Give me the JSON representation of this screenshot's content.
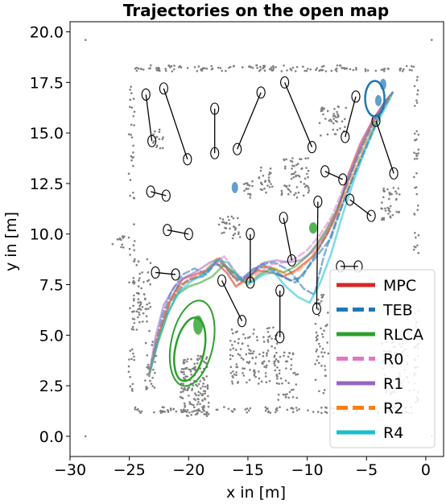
{
  "chart_data": {
    "type": "line",
    "title": "Trajectories on the open map",
    "xlabel": "x in [m]",
    "ylabel": "y in [m]",
    "xlim": [
      -30,
      1.5
    ],
    "ylim": [
      -1,
      20.5
    ],
    "xticks": [
      -30,
      -25,
      -20,
      -15,
      -10,
      -5,
      0
    ],
    "yticks": [
      0.0,
      2.5,
      5.0,
      7.5,
      10.0,
      12.5,
      15.0,
      17.5,
      20.0
    ],
    "xtick_labels": [
      "−30",
      "−25",
      "−20",
      "−15",
      "−10",
      "−5",
      "0"
    ],
    "ytick_labels": [
      "0.0",
      "2.5",
      "5.0",
      "7.5",
      "10.0",
      "12.5",
      "15.0",
      "17.5",
      "20.0"
    ],
    "grid": false,
    "legend_position": "bottom-right",
    "legend": [
      {
        "name": "MPC",
        "color": "#d62728",
        "style": "solid"
      },
      {
        "name": "TEB",
        "color": "#1f77b4",
        "style": "dashed"
      },
      {
        "name": "RLCA",
        "color": "#2ca02c",
        "style": "solid"
      },
      {
        "name": "R0",
        "color": "#e377c2",
        "style": "dashed"
      },
      {
        "name": "R1",
        "color": "#9467bd",
        "style": "solid"
      },
      {
        "name": "R2",
        "color": "#ff7f0e",
        "style": "dashed"
      },
      {
        "name": "R4",
        "color": "#17becf",
        "style": "solid"
      }
    ],
    "start": [
      -23.3,
      3.1
    ],
    "goal": [
      -2.8,
      17.0
    ],
    "series": [
      {
        "name": "MPC",
        "color": "#d62728",
        "x": [
          -23.3,
          -22.5,
          -21.5,
          -20.5,
          -19.5,
          -18.5,
          -17.7,
          -16.8,
          -16.0,
          -15.2,
          -14.2,
          -13.0,
          -12.0,
          -11.0,
          -9.5,
          -8.3,
          -7.5,
          -6.5,
          -5.5,
          -4.5,
          -3.5,
          -2.8
        ],
        "y": [
          3.1,
          5.0,
          6.8,
          7.8,
          8.0,
          8.2,
          8.6,
          8.1,
          7.4,
          7.8,
          8.2,
          8.1,
          7.9,
          8.2,
          8.9,
          10.0,
          11.0,
          13.0,
          14.5,
          15.6,
          16.5,
          17.0
        ]
      },
      {
        "name": "TEB",
        "color": "#1f77b4",
        "x": [
          -23.3,
          -22.8,
          -22.2,
          -21.5,
          -20.5,
          -19.5,
          -18.5,
          -17.6,
          -16.5,
          -15.5,
          -14.5,
          -13.2,
          -12.0,
          -11.0,
          -10.0,
          -9.2,
          -8.0,
          -7.0,
          -6.0,
          -5.0,
          -4.0,
          -2.8
        ],
        "y": [
          3.1,
          4.5,
          6.0,
          7.1,
          8.0,
          8.3,
          8.0,
          8.7,
          8.2,
          7.8,
          8.3,
          8.4,
          7.9,
          7.6,
          8.3,
          8.9,
          9.8,
          11.5,
          13.0,
          14.3,
          15.8,
          17.0
        ]
      },
      {
        "name": "TEB",
        "color": "#1f77b4",
        "x": [
          -23.3,
          -22.6,
          -21.6,
          -20.3,
          -19.2,
          -18.2,
          -17.4,
          -16.3,
          -15.2,
          -14.0,
          -12.8,
          -11.5,
          -10.3,
          -9.4,
          -8.6,
          -7.6,
          -6.4,
          -5.3,
          -4.4,
          -3.5,
          -2.8
        ],
        "y": [
          3.1,
          4.9,
          6.6,
          7.6,
          7.9,
          8.3,
          8.8,
          7.9,
          7.6,
          8.5,
          8.6,
          8.2,
          7.3,
          7.0,
          8.9,
          10.6,
          12.4,
          14.0,
          15.2,
          16.3,
          17.0
        ]
      },
      {
        "name": "TEB",
        "color": "#1f77b4",
        "x": [
          -23.3,
          -22.7,
          -21.9,
          -20.9,
          -19.8,
          -18.8,
          -17.8,
          -16.9,
          -15.9,
          -14.8,
          -13.7,
          -12.5,
          -11.4,
          -10.4,
          -9.6,
          -8.8,
          -7.9,
          -6.9,
          -5.9,
          -4.8,
          -3.8,
          -2.8
        ],
        "y": [
          3.1,
          4.7,
          6.3,
          7.4,
          7.8,
          7.9,
          8.5,
          8.4,
          7.7,
          8.0,
          8.5,
          8.0,
          7.7,
          7.9,
          8.7,
          9.5,
          10.5,
          12.1,
          13.6,
          15.0,
          16.2,
          17.0
        ]
      },
      {
        "name": "RLCA",
        "color": "#2ca02c",
        "x": [
          -23.3,
          -22.6,
          -21.8,
          -21.0,
          -20.0,
          -19.0,
          -18.0,
          -17.0,
          -16.0,
          -15.0,
          -14.0,
          -13.0,
          -12.0,
          -11.0,
          -10.0,
          -9.2,
          -8.4,
          -7.5,
          -6.5,
          -5.5,
          -4.5,
          -3.5,
          -2.8
        ],
        "y": [
          3.1,
          4.6,
          6.0,
          7.0,
          7.4,
          7.6,
          7.9,
          8.5,
          8.0,
          7.5,
          8.0,
          8.3,
          8.1,
          8.4,
          8.9,
          9.5,
          10.2,
          11.2,
          12.8,
          14.3,
          15.5,
          16.5,
          17.0
        ]
      },
      {
        "name": "R0",
        "color": "#e377c2",
        "x": [
          -23.3,
          -22.7,
          -21.9,
          -21.0,
          -20.0,
          -19.0,
          -18.0,
          -17.0,
          -16.0,
          -15.0,
          -14.0,
          -13.0,
          -12.0,
          -11.0,
          -10.0,
          -9.0,
          -8.0,
          -7.2,
          -6.2,
          -5.2,
          -4.2,
          -3.3,
          -2.8
        ],
        "y": [
          3.1,
          4.8,
          6.3,
          7.2,
          7.8,
          8.1,
          8.4,
          8.9,
          8.1,
          7.6,
          8.1,
          8.5,
          8.6,
          8.8,
          9.2,
          9.9,
          10.8,
          11.9,
          13.4,
          14.8,
          15.9,
          16.6,
          17.0
        ]
      },
      {
        "name": "R1",
        "color": "#9467bd",
        "x": [
          -23.3,
          -22.8,
          -22.1,
          -21.2,
          -20.2,
          -19.2,
          -18.2,
          -17.3,
          -16.4,
          -15.5,
          -14.6,
          -13.6,
          -12.6,
          -11.6,
          -10.6,
          -9.6,
          -8.6,
          -7.6,
          -6.6,
          -5.6,
          -4.6,
          -3.6,
          -2.8
        ],
        "y": [
          3.1,
          4.9,
          6.5,
          7.4,
          7.9,
          8.2,
          8.6,
          8.8,
          8.0,
          7.7,
          8.2,
          8.6,
          8.7,
          8.6,
          8.7,
          9.1,
          9.9,
          11.0,
          12.6,
          14.1,
          15.4,
          16.4,
          17.0
        ]
      },
      {
        "name": "R2",
        "color": "#ff7f0e",
        "x": [
          -23.3,
          -22.5,
          -21.6,
          -20.6,
          -19.6,
          -18.6,
          -17.6,
          -16.7,
          -15.7,
          -14.7,
          -13.7,
          -12.7,
          -11.7,
          -10.7,
          -9.7,
          -8.8,
          -7.9,
          -7.0,
          -6.0,
          -5.0,
          -4.0,
          -3.2,
          -2.8
        ],
        "y": [
          3.1,
          5.0,
          6.7,
          7.5,
          7.8,
          8.2,
          8.8,
          8.3,
          7.5,
          7.9,
          8.4,
          8.3,
          8.0,
          8.2,
          8.8,
          9.6,
          10.5,
          11.7,
          13.2,
          14.6,
          15.8,
          16.6,
          17.0
        ]
      },
      {
        "name": "R4",
        "color": "#17becf",
        "x": [
          -23.3,
          -22.6,
          -21.7,
          -20.7,
          -19.7,
          -18.7,
          -17.7,
          -16.7,
          -15.7,
          -14.7,
          -13.7,
          -12.8,
          -11.8,
          -10.8,
          -9.8,
          -8.9,
          -8.0,
          -7.1,
          -6.1,
          -5.1,
          -4.1,
          -3.2,
          -2.8
        ],
        "y": [
          3.1,
          4.7,
          6.2,
          7.2,
          7.7,
          8.0,
          8.7,
          8.6,
          7.8,
          7.6,
          8.0,
          8.1,
          7.4,
          6.9,
          6.6,
          7.6,
          9.0,
          10.8,
          12.6,
          14.2,
          15.5,
          16.5,
          17.0
        ]
      }
    ],
    "obstacle_paths": [
      [
        [
          -23.6,
          16.9
        ],
        [
          -23.1,
          14.6
        ]
      ],
      [
        [
          -22.1,
          17.2
        ],
        [
          -20.1,
          13.7
        ]
      ],
      [
        [
          -17.8,
          16.2
        ],
        [
          -17.8,
          14.0
        ]
      ],
      [
        [
          -15.9,
          14.2
        ],
        [
          -13.9,
          17.0
        ]
      ],
      [
        [
          -11.9,
          17.5
        ],
        [
          -9.6,
          14.3
        ]
      ],
      [
        [
          -23.2,
          12.1
        ],
        [
          -21.9,
          11.9
        ]
      ],
      [
        [
          -21.8,
          10.2
        ],
        [
          -20.0,
          10.0
        ]
      ],
      [
        [
          -22.8,
          8.1
        ],
        [
          -21.1,
          8.0
        ]
      ],
      [
        [
          -17.2,
          7.7
        ],
        [
          -15.5,
          5.7
        ]
      ],
      [
        [
          -14.8,
          10.0
        ],
        [
          -14.8,
          7.6
        ]
      ],
      [
        [
          -12.0,
          10.8
        ],
        [
          -11.3,
          8.7
        ]
      ],
      [
        [
          -12.3,
          7.2
        ],
        [
          -12.3,
          4.9
        ]
      ],
      [
        [
          -9.1,
          11.6
        ],
        [
          -9.2,
          6.3
        ]
      ],
      [
        [
          -8.5,
          13.1
        ],
        [
          -7.0,
          12.7
        ]
      ],
      [
        [
          -6.4,
          11.7
        ],
        [
          -4.6,
          10.9
        ]
      ],
      [
        [
          -7.2,
          8.4
        ],
        [
          -5.7,
          8.4
        ]
      ],
      [
        [
          -6.8,
          14.8
        ],
        [
          -5.9,
          16.8
        ]
      ],
      [
        [
          -4.2,
          15.6
        ],
        [
          -2.7,
          13.0
        ]
      ]
    ],
    "map_points": {
      "color": "#808080",
      "x_range": [
        -25.5,
        -0.5
      ],
      "y_range": [
        1.2,
        18.3
      ]
    }
  }
}
